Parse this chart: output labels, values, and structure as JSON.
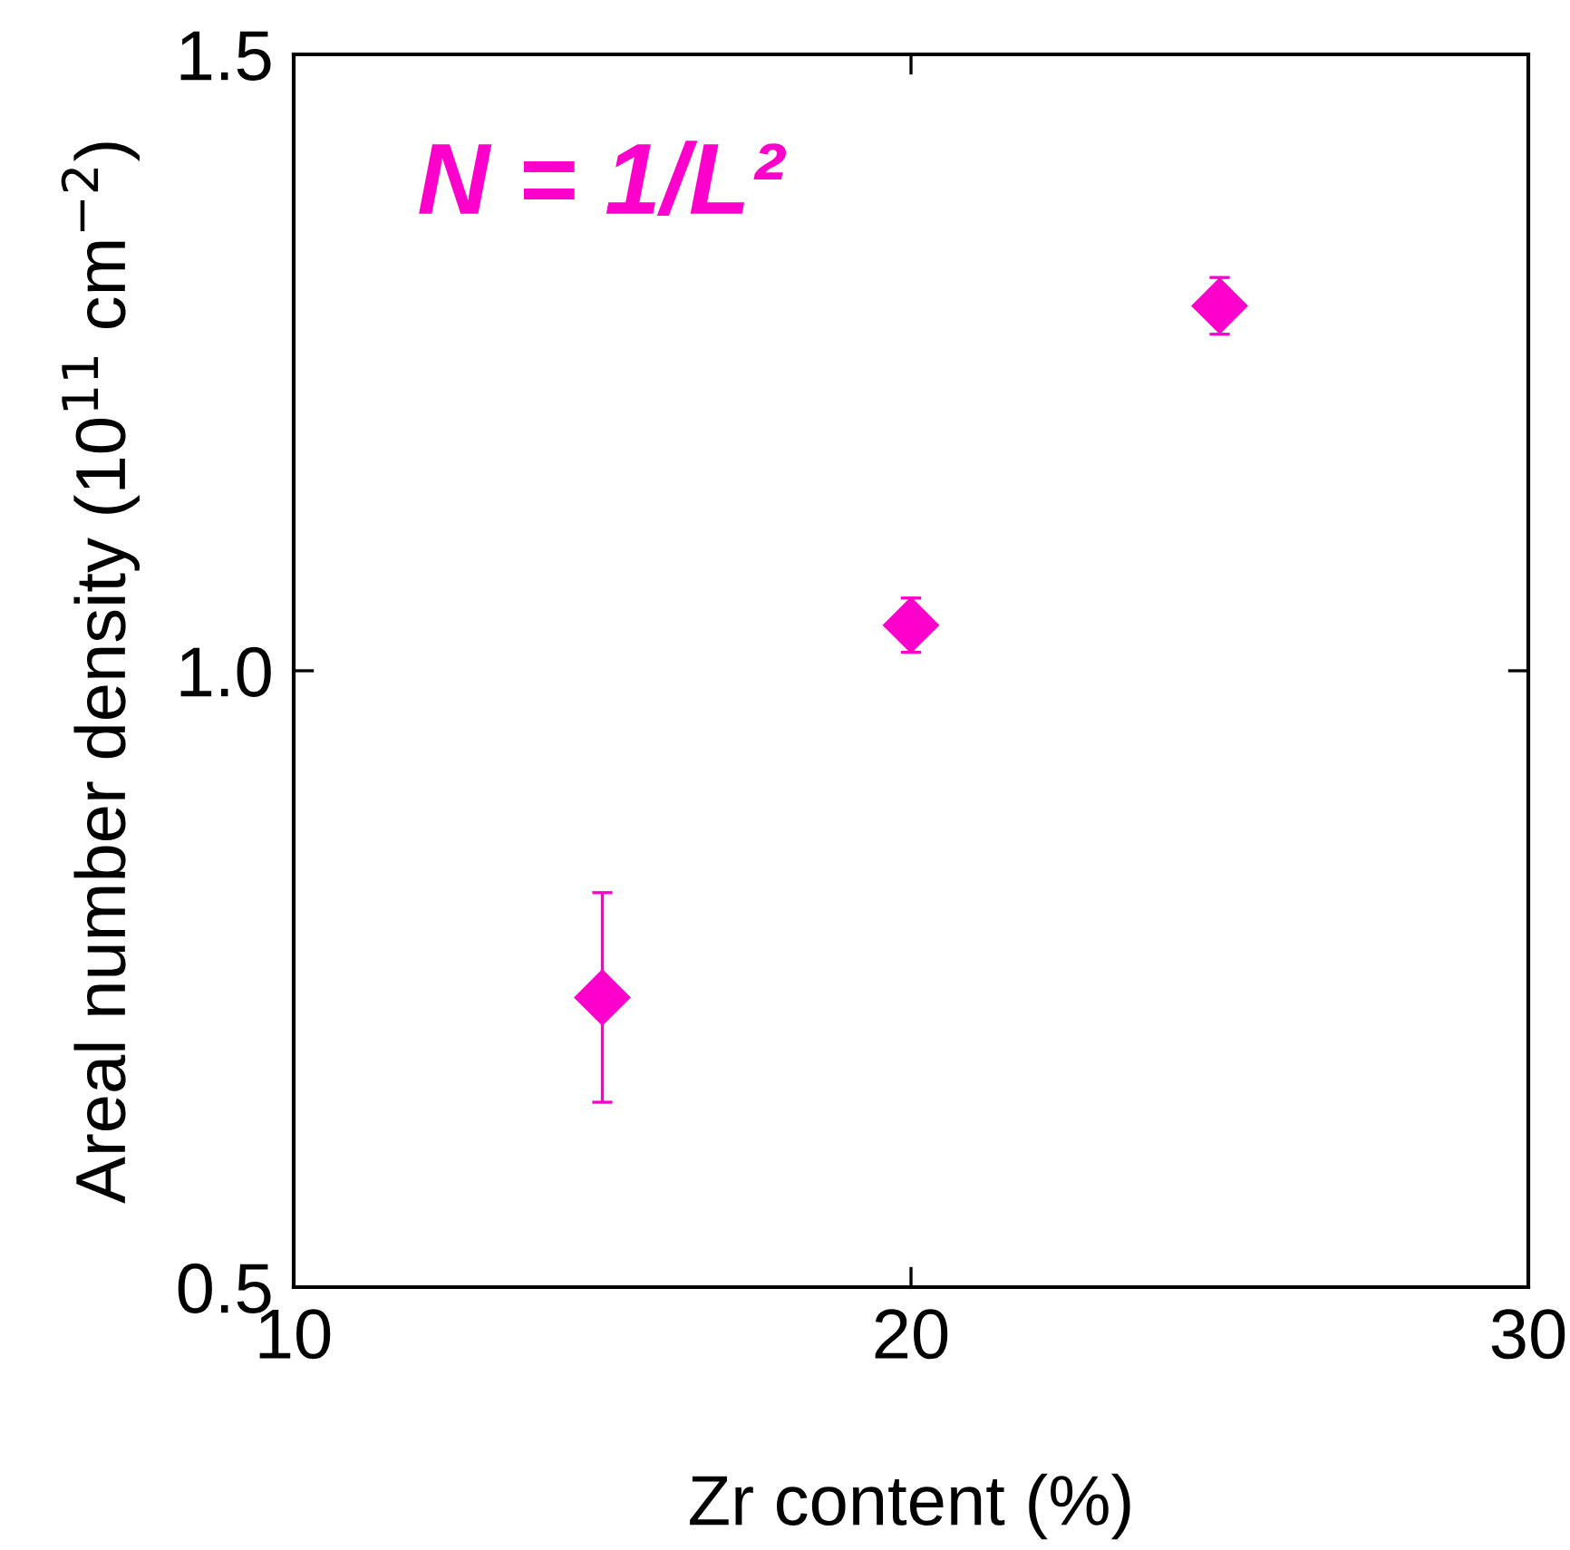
{
  "chart_data": {
    "type": "scatter",
    "xlabel": "Zr content (%)",
    "ylabel": "Areal number density (10$^{11}$ cm$^{−2}$)",
    "annotations": [
      "N = 1/L²"
    ],
    "x": [
      15,
      20,
      25
    ],
    "series": [
      {
        "color": "#ff00cc",
        "values": [
          0.735,
          1.037,
          1.296
        ],
        "errors": [
          0.085,
          0.022,
          0.023
        ]
      }
    ],
    "xlim": [
      10,
      30
    ],
    "xticks": [
      10,
      20,
      30
    ],
    "ylim": [
      0.5,
      1.5
    ],
    "yticks": [
      {
        "value": 0.5,
        "label": "0.5"
      },
      {
        "value": 1.0,
        "label": "1.0"
      },
      {
        "value": 1.5,
        "label": "1.5"
      }
    ],
    "marker": "diamond",
    "grid": false,
    "legend": false
  }
}
